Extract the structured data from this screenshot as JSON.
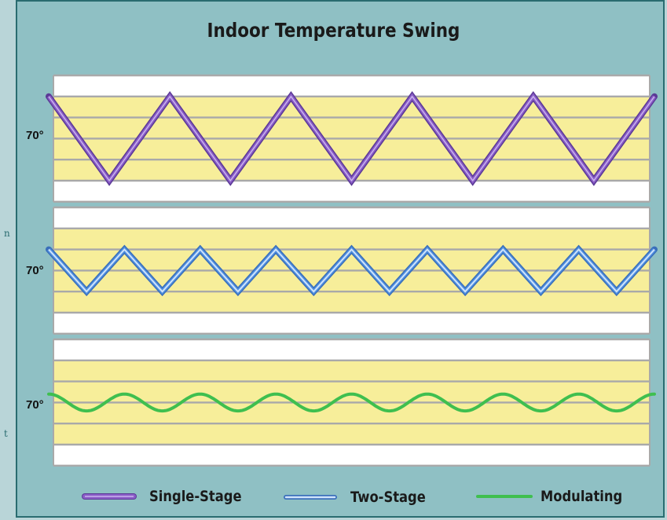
{
  "chart_data": {
    "type": "line",
    "title": "Indoor Temperature Swing",
    "panels": [
      {
        "ylabel": "70°",
        "series": "Single-Stage",
        "shape": "triangle",
        "color": "#8a5cc7",
        "outline": "#5b3a96",
        "highlight": "#c9b3ee",
        "cycles": 5,
        "amplitude_bands": 1.0
      },
      {
        "ylabel": "70°",
        "series": "Two-Stage",
        "shape": "triangle",
        "color": "#4f8fe0",
        "outline": "#3a6fba",
        "highlight": "#cfe3fb",
        "cycles": 8,
        "amplitude_bands": 0.5
      },
      {
        "ylabel": "70°",
        "series": "Modulating",
        "shape": "sine",
        "color": "#3fbf4f",
        "outline": "#3fbf4f",
        "highlight": null,
        "cycles": 8,
        "amplitude_bands": 0.2
      }
    ],
    "legend": [
      {
        "name": "Single-Stage",
        "color": "#8a5cc7"
      },
      {
        "name": "Two-Stage",
        "color": "#4f8fe0"
      },
      {
        "name": "Modulating",
        "color": "#3fbf4f"
      }
    ],
    "legend_position": "bottom",
    "band_colors": {
      "comfort": "#f7ee9a",
      "outside": "#ffffff",
      "grid": "#a9a9a9"
    }
  },
  "edge_marks": [
    "n",
    "t"
  ]
}
